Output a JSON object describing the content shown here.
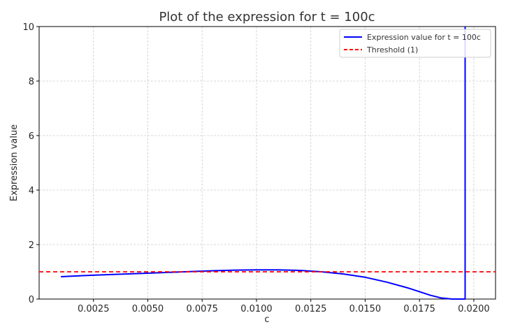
{
  "chart_data": {
    "type": "line",
    "title": "Plot of the expression for t = 100c",
    "xlabel": "c",
    "ylabel": "Expression value",
    "xlim": [
      0.0,
      0.021
    ],
    "ylim": [
      0,
      10
    ],
    "xticks": [
      0.0025,
      0.005,
      0.0075,
      0.01,
      0.0125,
      0.015,
      0.0175,
      0.02
    ],
    "xtick_labels": [
      "0.0025",
      "0.0050",
      "0.0075",
      "0.0100",
      "0.0125",
      "0.0150",
      "0.0175",
      "0.0200"
    ],
    "yticks": [
      0,
      2,
      4,
      6,
      8,
      10
    ],
    "ytick_labels": [
      "0",
      "2",
      "4",
      "6",
      "8",
      "10"
    ],
    "grid": true,
    "legend_position": "top-right",
    "series": [
      {
        "name": "Expression value for t = 100c",
        "style": "solid",
        "color": "#0000ff",
        "x": [
          0.001,
          0.002,
          0.003,
          0.004,
          0.005,
          0.006,
          0.007,
          0.008,
          0.009,
          0.01,
          0.011,
          0.012,
          0.013,
          0.014,
          0.015,
          0.016,
          0.017,
          0.0175,
          0.018,
          0.0185,
          0.019,
          0.0195,
          0.0196,
          0.0196
        ],
        "y": [
          0.82,
          0.86,
          0.89,
          0.92,
          0.95,
          0.98,
          1.01,
          1.04,
          1.06,
          1.07,
          1.07,
          1.05,
          1.0,
          0.92,
          0.8,
          0.62,
          0.4,
          0.27,
          0.14,
          0.04,
          0.0,
          0.0,
          0.0,
          10
        ]
      },
      {
        "name": "Threshold (1)",
        "style": "dashed",
        "color": "#ff0000",
        "x": [
          0.0,
          0.021
        ],
        "y": [
          1,
          1
        ]
      }
    ]
  }
}
